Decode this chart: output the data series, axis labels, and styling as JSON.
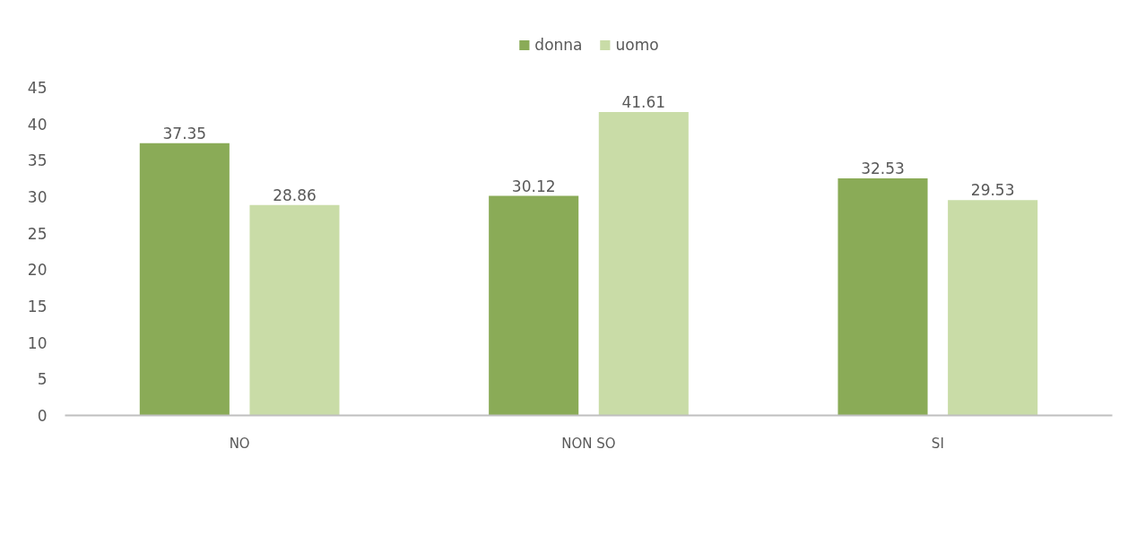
{
  "chart_data": {
    "type": "bar",
    "categories": [
      "NO",
      "NON SO",
      "SI"
    ],
    "series": [
      {
        "name": "donna",
        "color": "#8aab57",
        "values": [
          37.35,
          30.12,
          32.53
        ]
      },
      {
        "name": "uomo",
        "color": "#c9dca7",
        "values": [
          28.86,
          41.61,
          29.53
        ]
      }
    ],
    "ylim": [
      0,
      45
    ],
    "yticks": [
      0,
      5,
      10,
      15,
      20,
      25,
      30,
      35,
      40,
      45
    ],
    "data_labels": true,
    "legend": "top",
    "grid": false
  }
}
